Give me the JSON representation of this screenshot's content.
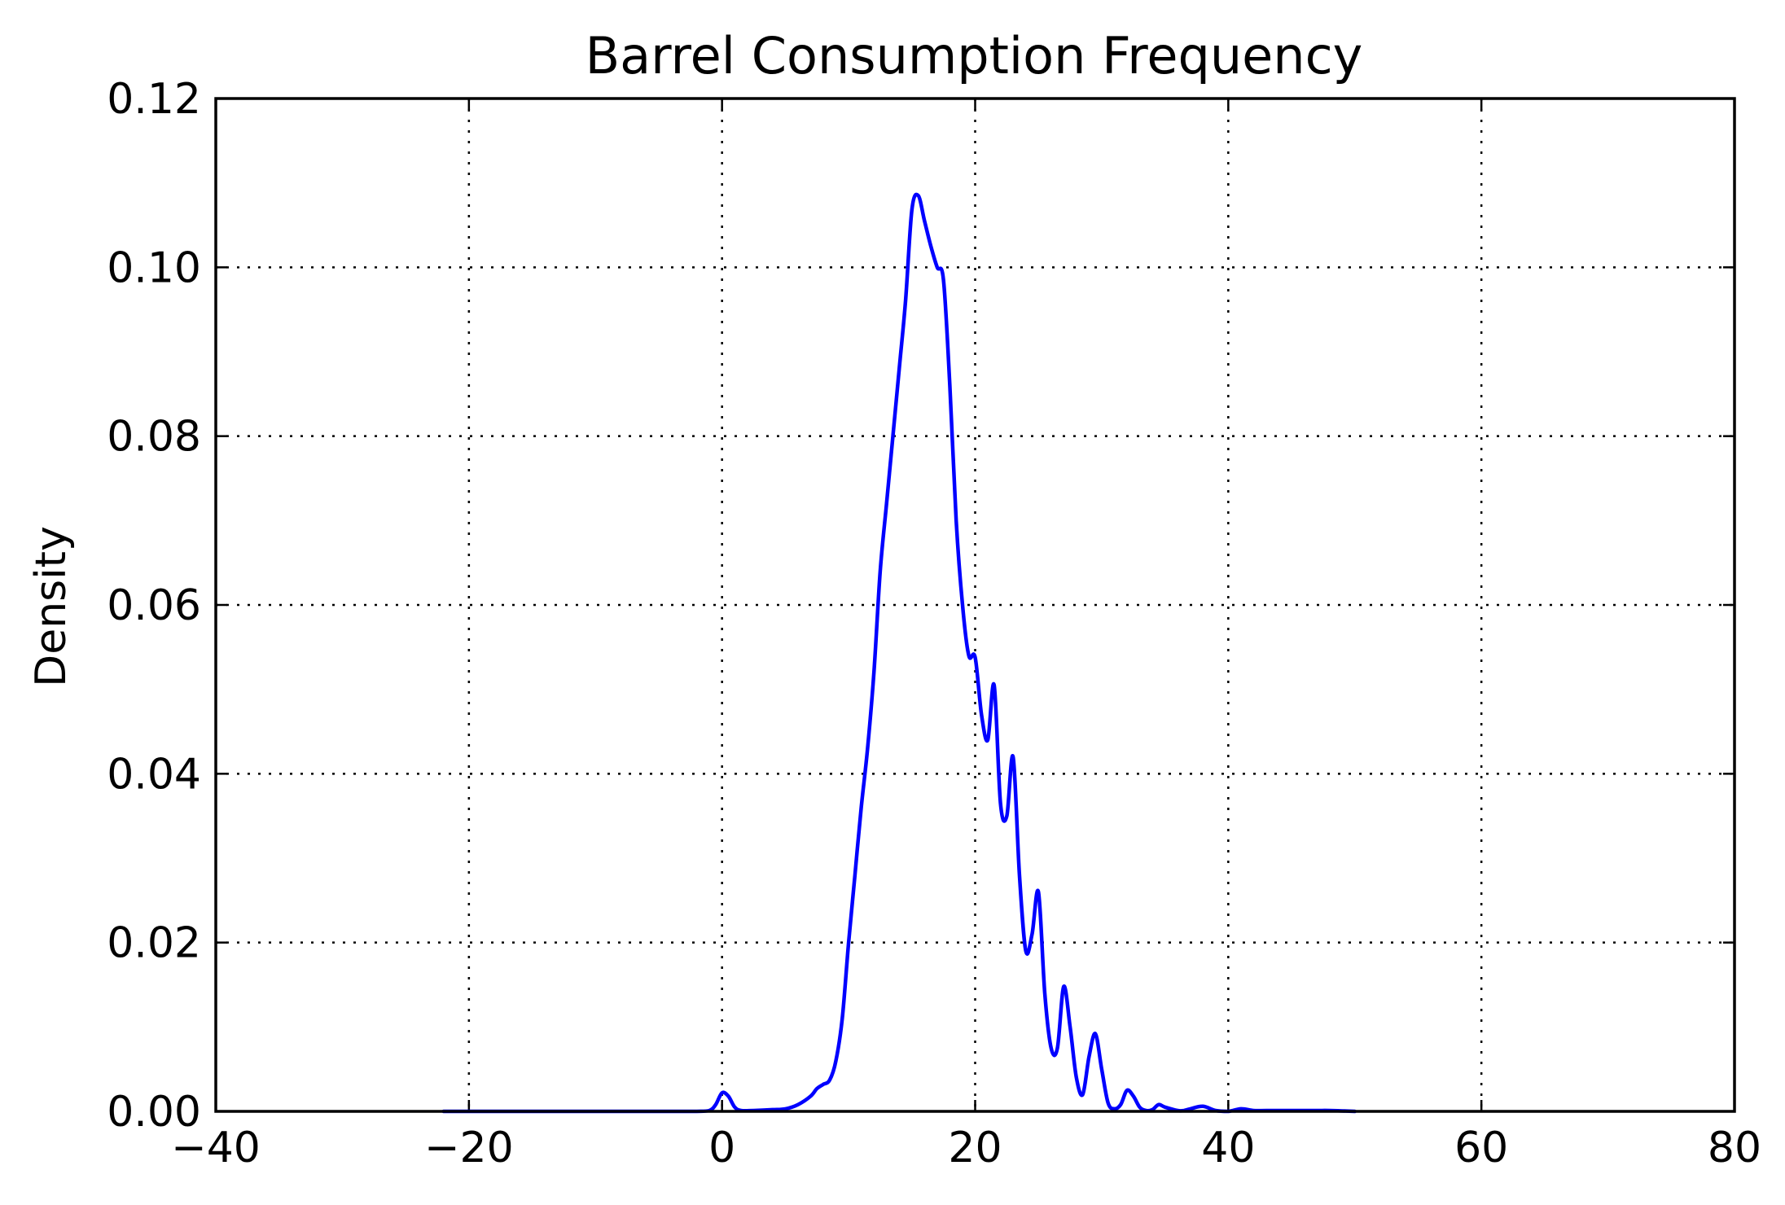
{
  "chart_data": {
    "type": "line",
    "title": "Barrel Consumption Frequency",
    "xlabel": "",
    "ylabel": "Density",
    "xlim": [
      -40,
      80
    ],
    "ylim": [
      0,
      0.12
    ],
    "xticks": [
      -40,
      -20,
      0,
      20,
      40,
      60,
      80
    ],
    "xtick_labels": [
      "−40",
      "−20",
      "0",
      "20",
      "40",
      "60",
      "80"
    ],
    "yticks": [
      0,
      0.02,
      0.04,
      0.06,
      0.08,
      0.1,
      0.12
    ],
    "ytick_labels": [
      "0.00",
      "0.02",
      "0.04",
      "0.06",
      "0.08",
      "0.10",
      "0.12"
    ],
    "grid": true,
    "colors": {
      "line": "#0000ff"
    },
    "series": [
      {
        "x": [
          -22,
          -10,
          -5,
          -2,
          -1,
          -0.5,
          0,
          0.5,
          1,
          1.5,
          2.5,
          4,
          5,
          6,
          7,
          7.5,
          8,
          8.5,
          9,
          9.5,
          10,
          10.5,
          11,
          11.5,
          12,
          12.5,
          13,
          13.5,
          14,
          14.5,
          15,
          15.5,
          16,
          16.5,
          17,
          17.5,
          18,
          18.5,
          19,
          19.5,
          20,
          20.5,
          21,
          21.5,
          22,
          22.5,
          23,
          23.5,
          24,
          24.5,
          25,
          25.5,
          26,
          26.5,
          27,
          27.5,
          28,
          28.5,
          29,
          29.5,
          30,
          30.5,
          31,
          31.5,
          32,
          32.5,
          33,
          33.5,
          34,
          34.5,
          35,
          36,
          36.5,
          37,
          38,
          39,
          40,
          41,
          42,
          43,
          45,
          47,
          48,
          50
        ],
        "y": [
          0,
          0,
          0,
          0,
          0.0001,
          0.0008,
          0.0022,
          0.0018,
          0.0005,
          0.0001,
          0.0001,
          0.0002,
          0.0003,
          0.0008,
          0.0018,
          0.0027,
          0.0032,
          0.0037,
          0.006,
          0.011,
          0.02,
          0.028,
          0.036,
          0.043,
          0.052,
          0.064,
          0.072,
          0.08,
          0.088,
          0.096,
          0.1068,
          0.1085,
          0.1055,
          0.1025,
          0.1,
          0.0985,
          0.086,
          0.07,
          0.06,
          0.054,
          0.0538,
          0.047,
          0.044,
          0.0505,
          0.0365,
          0.035,
          0.042,
          0.028,
          0.019,
          0.021,
          0.026,
          0.014,
          0.0075,
          0.0075,
          0.0148,
          0.01,
          0.004,
          0.002,
          0.0065,
          0.0092,
          0.005,
          0.001,
          0.0003,
          0.0008,
          0.0025,
          0.0018,
          0.0005,
          0.0001,
          0.0002,
          0.0008,
          0.0005,
          0.0001,
          0.0001,
          0.0003,
          0.0006,
          0.0001,
          0,
          0.0003,
          0.0001,
          0.0001,
          0.0001,
          0.0001,
          0.0001,
          0
        ]
      }
    ]
  }
}
